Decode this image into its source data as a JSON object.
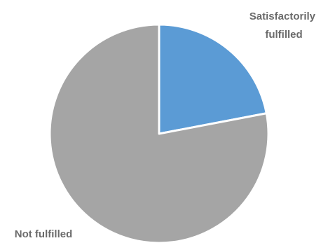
{
  "chart_data": {
    "type": "pie",
    "title": "",
    "slices": [
      {
        "label": "Satisfactorily fulfilled",
        "label_lines": [
          "Satisfactorily",
          "fulfilled"
        ],
        "value": 22,
        "color": "#5b9bd5"
      },
      {
        "label": "Not fulfilled",
        "label_lines": [
          "Not fulfilled"
        ],
        "value": 78,
        "color": "#a5a5a5"
      }
    ],
    "start_angle": "12 o'clock",
    "direction": "clockwise",
    "legend": "none"
  }
}
